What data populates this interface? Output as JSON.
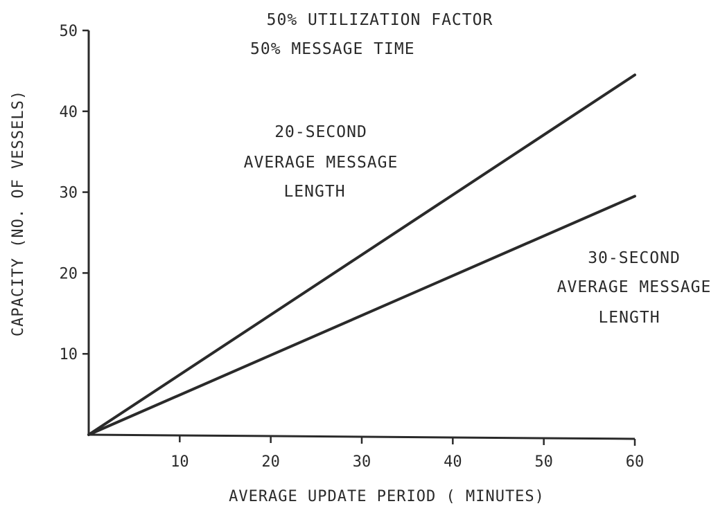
{
  "chart_data": {
    "type": "line",
    "annotations": [
      "50% UTILIZATION FACTOR",
      "50% MESSAGE TIME"
    ],
    "xlabel": "AVERAGE UPDATE PERIOD ( MINUTES)",
    "ylabel": "CAPACITY (NO. OF VESSELS)",
    "xlim": [
      0,
      60
    ],
    "ylim": [
      0,
      50
    ],
    "x_ticks": [
      10,
      20,
      30,
      40,
      50,
      60
    ],
    "y_ticks": [
      10,
      20,
      30,
      40,
      50
    ],
    "grid": false,
    "series": [
      {
        "name": [
          "20-SECOND",
          "AVERAGE MESSAGE",
          "LENGTH"
        ],
        "x": [
          0,
          60
        ],
        "y": [
          0,
          44.5
        ]
      },
      {
        "name": [
          "30-SECOND",
          "AVERAGE MESSAGE",
          "LENGTH"
        ],
        "x": [
          0,
          60
        ],
        "y": [
          0,
          29.5
        ]
      }
    ],
    "colors": {
      "ink": "#2a2a2a"
    }
  }
}
